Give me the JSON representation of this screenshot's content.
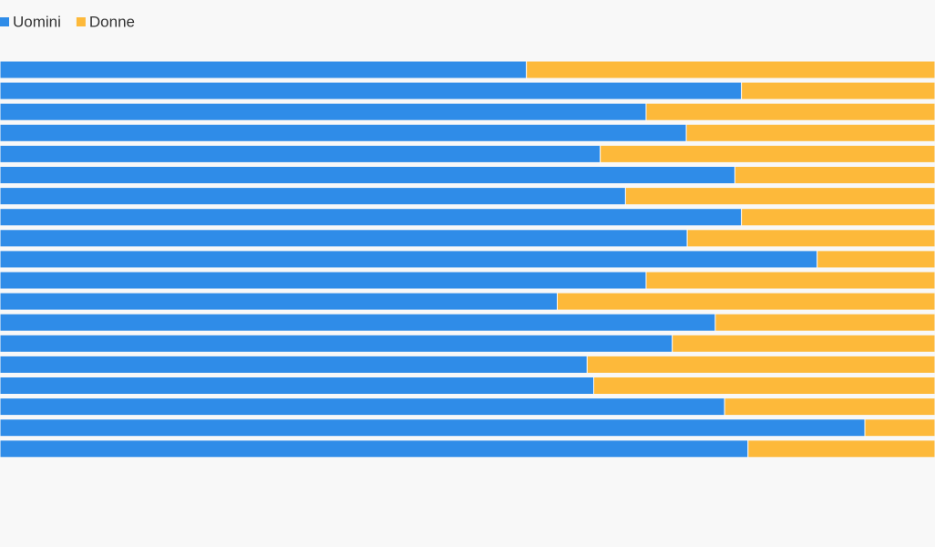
{
  "chart_data": {
    "type": "bar",
    "orientation": "horizontal",
    "stacked": true,
    "categories": [
      null,
      null,
      null,
      null,
      null,
      null,
      null,
      null,
      null,
      null,
      null,
      null,
      null,
      null,
      null,
      null,
      null,
      null,
      null
    ],
    "xlim": [
      0,
      100
    ],
    "legend": "top-left",
    "series": [
      {
        "name": "Uomini",
        "color": "#2f8ce8",
        "values": [
          56.3,
          79.3,
          69.1,
          73.4,
          64.2,
          78.6,
          66.9,
          79.3,
          73.5,
          87.4,
          69.1,
          59.6,
          76.5,
          71.9,
          62.8,
          63.5,
          77.5,
          92.5,
          80.0
        ]
      },
      {
        "name": "Donne",
        "color": "#fdb93a",
        "values": [
          43.7,
          20.7,
          30.9,
          26.6,
          35.8,
          21.4,
          33.1,
          20.7,
          26.5,
          12.6,
          30.9,
          40.4,
          23.5,
          28.1,
          37.2,
          36.5,
          22.5,
          7.5,
          20.0
        ]
      }
    ]
  }
}
